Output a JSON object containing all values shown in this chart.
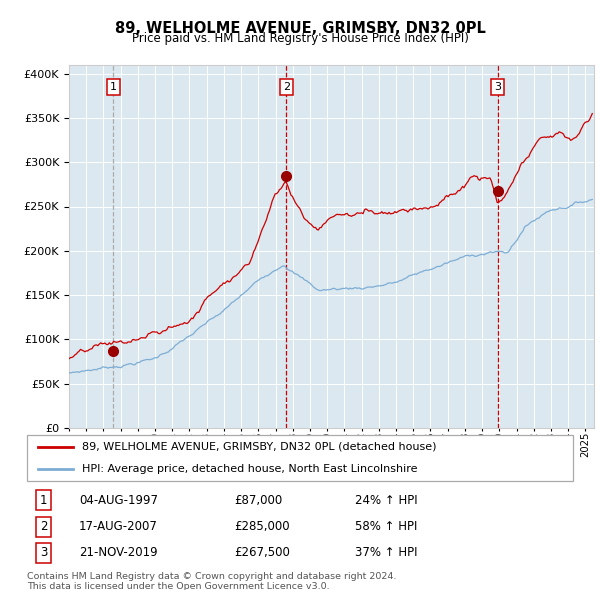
{
  "title": "89, WELHOLME AVENUE, GRIMSBY, DN32 0PL",
  "subtitle": "Price paid vs. HM Land Registry's House Price Index (HPI)",
  "legend_line1": "89, WELHOLME AVENUE, GRIMSBY, DN32 0PL (detached house)",
  "legend_line2": "HPI: Average price, detached house, North East Lincolnshire",
  "footnote1": "Contains HM Land Registry data © Crown copyright and database right 2024.",
  "footnote2": "This data is licensed under the Open Government Licence v3.0.",
  "red_color": "#cc0000",
  "blue_color": "#7dadd4",
  "bg_color": "#dce8f0",
  "sale1_date": 1997.58,
  "sale1_price": 87000,
  "sale1_date_str": "04-AUG-1997",
  "sale1_price_str": "£87,000",
  "sale1_hpi": "24% ↑ HPI",
  "sale2_date": 2007.62,
  "sale2_price": 285000,
  "sale2_date_str": "17-AUG-2007",
  "sale2_price_str": "£285,000",
  "sale2_hpi": "58% ↑ HPI",
  "sale3_date": 2019.9,
  "sale3_price": 267500,
  "sale3_date_str": "21-NOV-2019",
  "sale3_price_str": "£267,500",
  "sale3_hpi": "37% ↑ HPI",
  "ylim": [
    0,
    410000
  ],
  "xlim_start": 1995.0,
  "xlim_end": 2025.5
}
